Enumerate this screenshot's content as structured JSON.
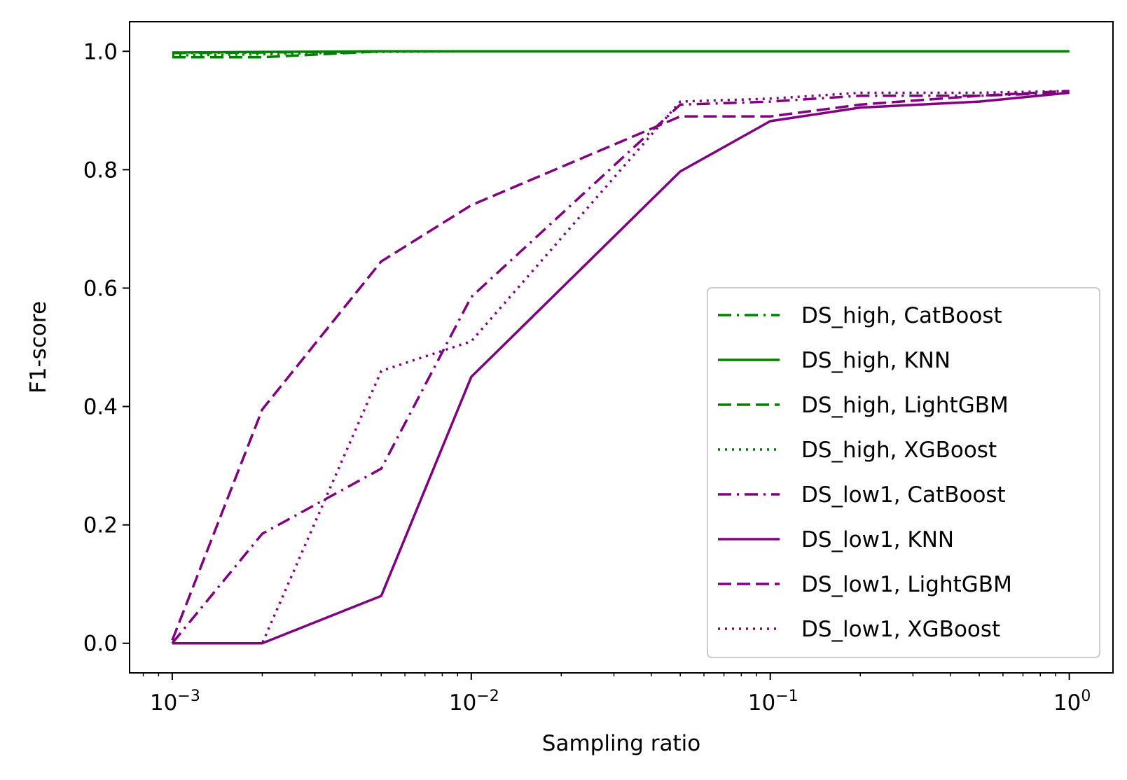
{
  "chart_data": {
    "type": "line",
    "title": "",
    "xlabel": "Sampling ratio",
    "ylabel": "F1-score",
    "xscale": "log",
    "xlim": [
      0.00072,
      1.4
    ],
    "ylim": [
      -0.05,
      1.05
    ],
    "x_ticks": [
      {
        "value": 0.001,
        "base": "10",
        "exp": "−3"
      },
      {
        "value": 0.01,
        "base": "10",
        "exp": "−2"
      },
      {
        "value": 0.1,
        "base": "10",
        "exp": "−1"
      },
      {
        "value": 1,
        "base": "10",
        "exp": "0"
      }
    ],
    "y_ticks": [
      {
        "value": 0.0,
        "label": "0.0"
      },
      {
        "value": 0.2,
        "label": "0.2"
      },
      {
        "value": 0.4,
        "label": "0.4"
      },
      {
        "value": 0.6,
        "label": "0.6"
      },
      {
        "value": 0.8,
        "label": "0.8"
      },
      {
        "value": 1.0,
        "label": "1.0"
      }
    ],
    "grid": false,
    "legend_position": "lower-right",
    "x": [
      0.001,
      0.002,
      0.005,
      0.01,
      0.05,
      0.1,
      0.2,
      0.5,
      1
    ],
    "series": [
      {
        "name": "DS_high, CatBoost",
        "color": "#008000",
        "style": "dashdot",
        "values": [
          0.997,
          0.998,
          1.0,
          1.0,
          1.0,
          1.0,
          1.0,
          1.0,
          1.0
        ]
      },
      {
        "name": "DS_high, KNN",
        "color": "#008000",
        "style": "solid",
        "values": [
          0.998,
          0.999,
          1.0,
          1.0,
          1.0,
          1.0,
          1.0,
          1.0,
          1.0
        ]
      },
      {
        "name": "DS_high, LightGBM",
        "color": "#008000",
        "style": "dashed",
        "values": [
          0.99,
          0.99,
          1.0,
          1.0,
          1.0,
          1.0,
          1.0,
          1.0,
          1.0
        ]
      },
      {
        "name": "DS_high, XGBoost",
        "color": "#008000",
        "style": "dotted",
        "values": [
          0.993,
          0.995,
          0.999,
          1.0,
          1.0,
          1.0,
          1.0,
          1.0,
          1.0
        ]
      },
      {
        "name": "DS_low1, CatBoost",
        "color": "#800080",
        "style": "dashdot",
        "values": [
          0.0,
          0.185,
          0.295,
          0.585,
          0.91,
          0.915,
          0.925,
          0.925,
          0.93
        ]
      },
      {
        "name": "DS_low1, KNN",
        "color": "#800080",
        "style": "solid",
        "values": [
          0.0,
          0.0,
          0.08,
          0.45,
          0.797,
          0.882,
          0.905,
          0.915,
          0.93
        ]
      },
      {
        "name": "DS_low1, LightGBM",
        "color": "#800080",
        "style": "dashed",
        "values": [
          0.005,
          0.395,
          0.645,
          0.74,
          0.89,
          0.89,
          0.91,
          0.925,
          0.933
        ]
      },
      {
        "name": "DS_low1, XGBoost",
        "color": "#800080",
        "style": "dotted",
        "values": [
          0.0,
          0.0,
          0.46,
          0.51,
          0.915,
          0.92,
          0.93,
          0.93,
          0.933
        ]
      }
    ]
  }
}
